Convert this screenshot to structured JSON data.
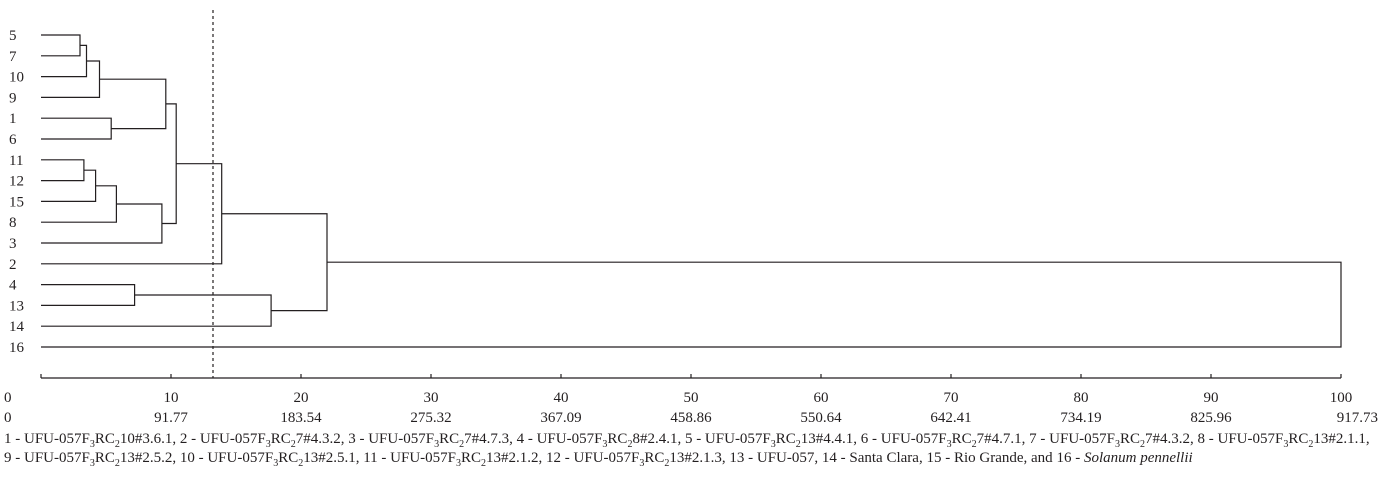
{
  "chart_data": {
    "type": "dendrogram",
    "leaf_order": [
      "5",
      "7",
      "10",
      "9",
      "1",
      "6",
      "11",
      "12",
      "15",
      "8",
      "3",
      "2",
      "4",
      "13",
      "14",
      "16"
    ],
    "merges": [
      {
        "a": "5",
        "b": "7",
        "height": 3.0
      },
      {
        "a": "5-7",
        "b": "10",
        "height": 3.5
      },
      {
        "a": "5-7-10",
        "b": "9",
        "height": 4.5
      },
      {
        "a": "1",
        "b": "6",
        "height": 5.4
      },
      {
        "a": "5-7-10-9",
        "b": "1-6",
        "height": 9.6
      },
      {
        "a": "11",
        "b": "12",
        "height": 3.3
      },
      {
        "a": "11-12",
        "b": "15",
        "height": 4.2
      },
      {
        "a": "11-12-15",
        "b": "8",
        "height": 5.8
      },
      {
        "a": "11-12-15-8",
        "b": "3",
        "height": 9.3
      },
      {
        "a": "group-A",
        "b": "group-B",
        "height": 10.4
      },
      {
        "a": "A-B",
        "b": "2",
        "height": 13.9
      },
      {
        "a": "4",
        "b": "13",
        "height": 7.2
      },
      {
        "a": "4-13",
        "b": "14",
        "height": 17.7
      },
      {
        "a": "A-B-2",
        "b": "4-13-14",
        "height": 22.0
      },
      {
        "a": "all-but-16",
        "b": "16",
        "height": 100
      }
    ],
    "cutoff": 13.3,
    "axis_scale_percent": [
      "0",
      "10",
      "20",
      "30",
      "40",
      "50",
      "60",
      "70",
      "80",
      "90",
      "100"
    ],
    "axis_scale_distance": [
      "0",
      "91.77",
      "183.54",
      "275.32",
      "367.09",
      "458.86",
      "550.64",
      "642.41",
      "734.19",
      "825.96",
      "917.73"
    ],
    "xlim": [
      0,
      100
    ]
  },
  "caption": {
    "items": [
      {
        "num": "1",
        "pre": "UFU-057F",
        "s1": "3",
        "mid": "RC",
        "s2": "2",
        "post": "10#3.6.1"
      },
      {
        "num": "2",
        "pre": "UFU-057F",
        "s1": "3",
        "mid": "RC",
        "s2": "2",
        "post": "7#4.3.2"
      },
      {
        "num": "3",
        "pre": "UFU-057F",
        "s1": "3",
        "mid": "RC",
        "s2": "2",
        "post": "7#4.7.3"
      },
      {
        "num": "4",
        "pre": "UFU-057F",
        "s1": "3",
        "mid": "RC",
        "s2": "2",
        "post": "8#2.4.1"
      },
      {
        "num": "5",
        "pre": "UFU-057F",
        "s1": "3",
        "mid": "RC",
        "s2": "2",
        "post": "13#4.4.1"
      },
      {
        "num": "6",
        "pre": "UFU-057F",
        "s1": "3",
        "mid": "RC",
        "s2": "2",
        "post": "7#4.7.1"
      },
      {
        "num": "7",
        "pre": "UFU-057F",
        "s1": "3",
        "mid": "RC",
        "s2": "2",
        "post": "7#4.3.2"
      },
      {
        "num": "8",
        "pre": "UFU-057F",
        "s1": "3",
        "mid": "RC",
        "s2": "2",
        "post": "13#2.1.1"
      },
      {
        "num": "9",
        "pre": "UFU-057F",
        "s1": "3",
        "mid": "RC",
        "s2": "2",
        "post": "13#2.5.2"
      },
      {
        "num": "10",
        "pre": "UFU-057F",
        "s1": "3",
        "mid": "RC",
        "s2": "2",
        "post": "13#2.5.1"
      },
      {
        "num": "11",
        "pre": "UFU-057F",
        "s1": "3",
        "mid": "RC",
        "s2": "2",
        "post": "13#2.1.2"
      },
      {
        "num": "12",
        "pre": "UFU-057F",
        "s1": "3",
        "mid": "RC",
        "s2": "2",
        "post": "13#2.1.3"
      },
      {
        "num": "13",
        "pre": "UFU-057",
        "s1": "",
        "mid": "",
        "s2": "",
        "post": ""
      },
      {
        "num": "14",
        "pre": "Santa Clara",
        "s1": "",
        "mid": "",
        "s2": "",
        "post": ""
      },
      {
        "num": "15",
        "pre": "Rio Grande",
        "s1": "",
        "mid": "",
        "s2": "",
        "post": ""
      }
    ],
    "conjunction": "and",
    "last_num": "16",
    "last_species": "Solanum pennellii"
  }
}
